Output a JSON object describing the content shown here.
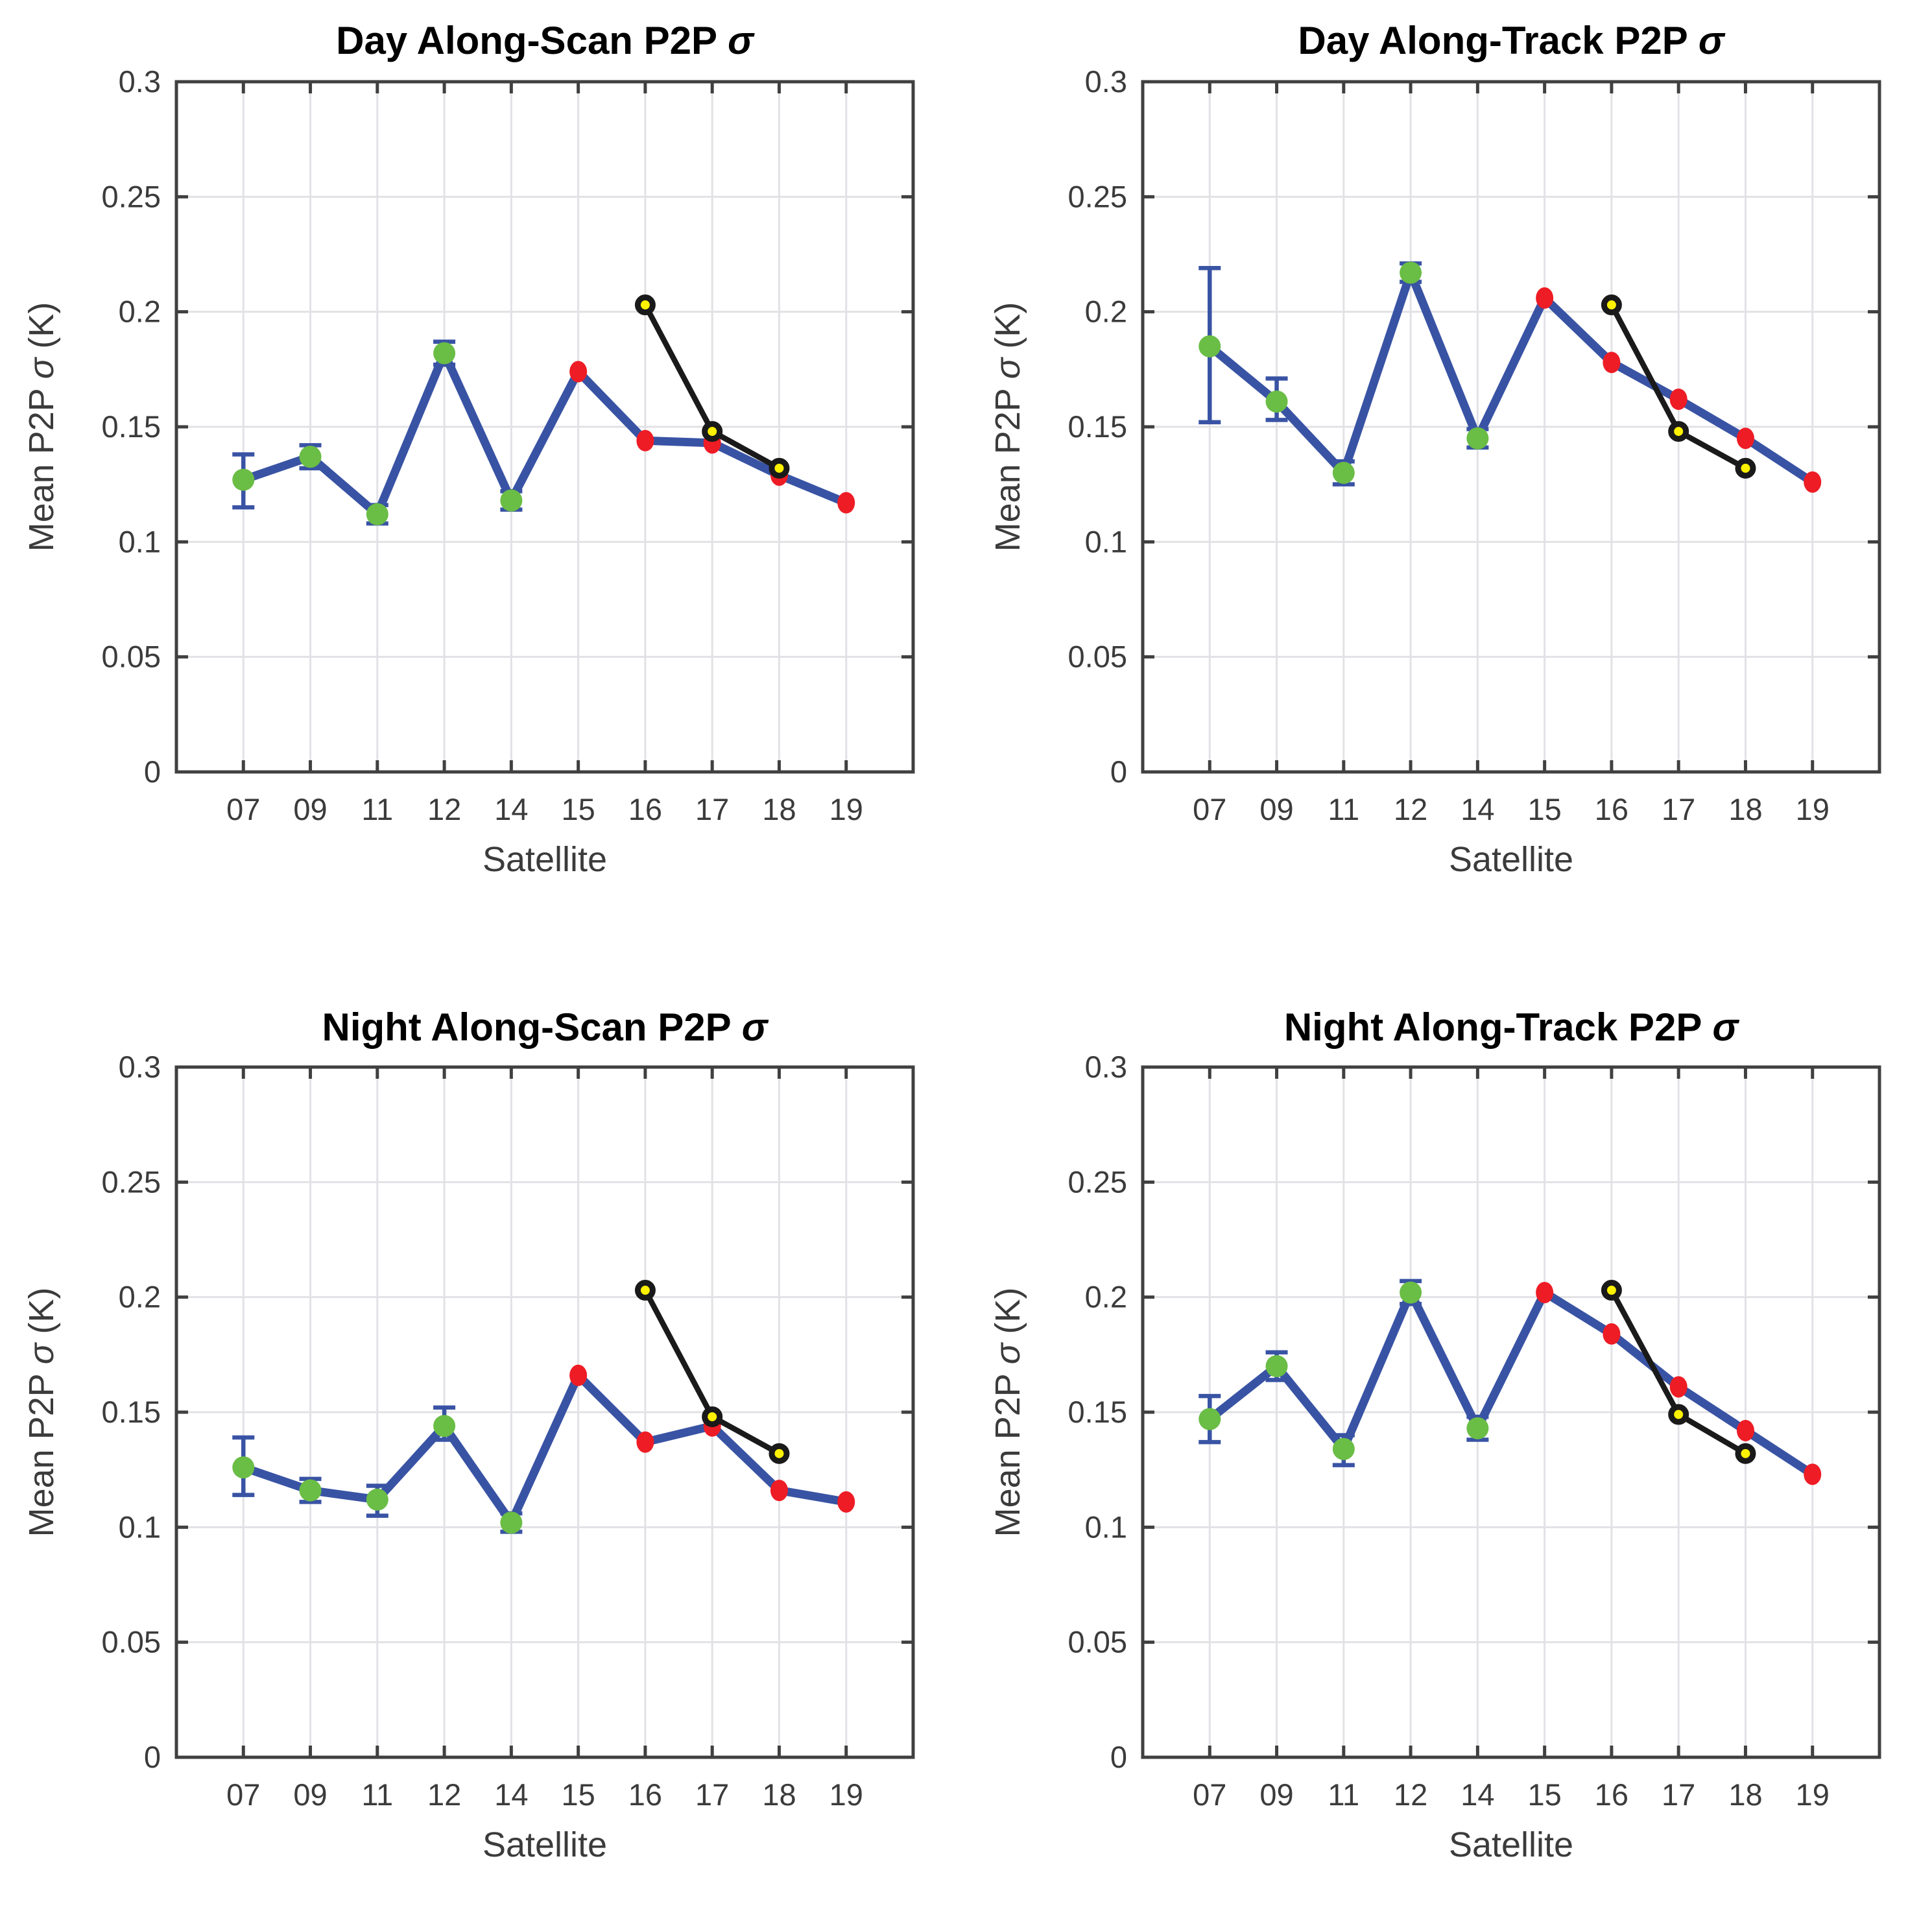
{
  "colors": {
    "background": "#FFFFFF",
    "blue_line": "#3953A4",
    "green_marker": "#6ABD45",
    "red_marker": "#EE1C25",
    "yellow_marker": "#FFF200",
    "black_line": "#1A1A1A",
    "grid": "#E2E2E6",
    "axis": "#404040",
    "tick_label": "#3B3B3B",
    "title": "#000000"
  },
  "chart_data": [
    {
      "type": "line",
      "title": "Day Along-Scan P2P σ",
      "title_prefix": "Day Along-Scan P2P",
      "sigma": "σ",
      "xlabel": "Satellite",
      "ylabel": "Mean P2P σ (K)",
      "ylabel_prefix": "Mean P2P",
      "ylabel_suffix": "(K)",
      "categories": [
        "07",
        "09",
        "11",
        "12",
        "14",
        "15",
        "16",
        "17",
        "18",
        "19"
      ],
      "ylim": [
        0,
        0.3
      ],
      "yticks": [
        0,
        0.05,
        0.1,
        0.15,
        0.2,
        0.25,
        0.3
      ],
      "ytick_labels": [
        "0",
        "0.05",
        "0.1",
        "0.15",
        "0.2",
        "0.25",
        "0.3"
      ],
      "grid": true,
      "legend_position": "none",
      "series": [
        {
          "id": "blue_series",
          "values": [
            0.127,
            0.137,
            0.112,
            0.182,
            0.118,
            0.174,
            0.144,
            0.143,
            0.129,
            0.117
          ],
          "err_low": [
            0.115,
            0.132,
            0.108,
            0.177,
            0.114,
            null,
            null,
            null,
            null,
            null
          ],
          "err_high": [
            0.138,
            0.142,
            0.116,
            0.187,
            0.122,
            null,
            null,
            null,
            null,
            null
          ],
          "markers": [
            "green-circle",
            "green-circle",
            "green-circle",
            "green-circle",
            "green-circle",
            "red-square",
            "red-square",
            "red-square",
            "red-square",
            "red-square"
          ]
        },
        {
          "id": "black_series",
          "categories": [
            "16",
            "17",
            "18"
          ],
          "values": [
            0.203,
            0.148,
            0.132
          ],
          "marker": "yellow-circle"
        }
      ]
    },
    {
      "type": "line",
      "title": "Day Along-Track P2P σ",
      "title_prefix": "Day Along-Track P2P",
      "sigma": "σ",
      "xlabel": "Satellite",
      "ylabel": "Mean P2P σ (K)",
      "ylabel_prefix": "Mean P2P",
      "ylabel_suffix": "(K)",
      "categories": [
        "07",
        "09",
        "11",
        "12",
        "14",
        "15",
        "16",
        "17",
        "18",
        "19"
      ],
      "ylim": [
        0,
        0.3
      ],
      "yticks": [
        0,
        0.05,
        0.1,
        0.15,
        0.2,
        0.25,
        0.3
      ],
      "ytick_labels": [
        "0",
        "0.05",
        "0.1",
        "0.15",
        "0.2",
        "0.25",
        "0.3"
      ],
      "grid": true,
      "legend_position": "none",
      "series": [
        {
          "id": "blue_series",
          "values": [
            0.185,
            0.161,
            0.13,
            0.217,
            0.145,
            0.206,
            0.178,
            0.162,
            0.145,
            0.126
          ],
          "err_low": [
            0.152,
            0.153,
            0.125,
            0.213,
            0.141,
            null,
            null,
            null,
            null,
            null
          ],
          "err_high": [
            0.219,
            0.171,
            0.135,
            0.221,
            0.149,
            null,
            null,
            null,
            null,
            null
          ],
          "markers": [
            "green-circle",
            "green-circle",
            "green-circle",
            "green-circle",
            "green-circle",
            "red-square",
            "red-square",
            "red-square",
            "red-square",
            "red-square"
          ]
        },
        {
          "id": "black_series",
          "categories": [
            "16",
            "17",
            "18"
          ],
          "values": [
            0.203,
            0.148,
            0.132
          ],
          "marker": "yellow-circle"
        }
      ]
    },
    {
      "type": "line",
      "title": "Night Along-Scan P2P σ",
      "title_prefix": "Night Along-Scan P2P",
      "sigma": "σ",
      "xlabel": "Satellite",
      "ylabel": "Mean P2P σ (K)",
      "ylabel_prefix": "Mean P2P",
      "ylabel_suffix": "(K)",
      "categories": [
        "07",
        "09",
        "11",
        "12",
        "14",
        "15",
        "16",
        "17",
        "18",
        "19"
      ],
      "ylim": [
        0,
        0.3
      ],
      "yticks": [
        0,
        0.05,
        0.1,
        0.15,
        0.2,
        0.25,
        0.3
      ],
      "ytick_labels": [
        "0",
        "0.05",
        "0.1",
        "0.15",
        "0.2",
        "0.25",
        "0.3"
      ],
      "grid": true,
      "legend_position": "none",
      "series": [
        {
          "id": "blue_series",
          "values": [
            0.126,
            0.116,
            0.112,
            0.144,
            0.102,
            0.166,
            0.137,
            0.144,
            0.116,
            0.111
          ],
          "err_low": [
            0.114,
            0.111,
            0.105,
            0.138,
            0.098,
            null,
            null,
            null,
            null,
            null
          ],
          "err_high": [
            0.139,
            0.121,
            0.118,
            0.152,
            0.106,
            null,
            null,
            null,
            null,
            null
          ],
          "markers": [
            "green-circle",
            "green-circle",
            "green-circle",
            "green-circle",
            "green-circle",
            "red-square",
            "red-square",
            "red-square",
            "red-square",
            "red-square"
          ]
        },
        {
          "id": "black_series",
          "categories": [
            "16",
            "17",
            "18"
          ],
          "values": [
            0.203,
            0.148,
            0.132
          ],
          "marker": "yellow-circle"
        }
      ]
    },
    {
      "type": "line",
      "title": "Night Along-Track P2P σ",
      "title_prefix": "Night Along-Track P2P",
      "sigma": "σ",
      "xlabel": "Satellite",
      "ylabel": "Mean P2P σ (K)",
      "ylabel_prefix": "Mean P2P",
      "ylabel_suffix": "(K)",
      "categories": [
        "07",
        "09",
        "11",
        "12",
        "14",
        "15",
        "16",
        "17",
        "18",
        "19"
      ],
      "ylim": [
        0,
        0.3
      ],
      "yticks": [
        0,
        0.05,
        0.1,
        0.15,
        0.2,
        0.25,
        0.3
      ],
      "ytick_labels": [
        "0",
        "0.05",
        "0.1",
        "0.15",
        "0.2",
        "0.25",
        "0.3"
      ],
      "grid": true,
      "legend_position": "none",
      "series": [
        {
          "id": "blue_series",
          "values": [
            0.147,
            0.17,
            0.134,
            0.202,
            0.143,
            0.202,
            0.184,
            0.161,
            0.142,
            0.123
          ],
          "err_low": [
            0.137,
            0.164,
            0.127,
            0.197,
            0.138,
            null,
            null,
            null,
            null,
            null
          ],
          "err_high": [
            0.157,
            0.176,
            0.14,
            0.207,
            0.148,
            null,
            null,
            null,
            null,
            null
          ],
          "markers": [
            "green-circle",
            "green-circle",
            "green-circle",
            "green-circle",
            "green-circle",
            "red-square",
            "red-square",
            "red-square",
            "red-square",
            "red-square"
          ]
        },
        {
          "id": "black_series",
          "categories": [
            "16",
            "17",
            "18"
          ],
          "values": [
            0.203,
            0.149,
            0.132
          ],
          "marker": "yellow-circle"
        }
      ]
    }
  ]
}
